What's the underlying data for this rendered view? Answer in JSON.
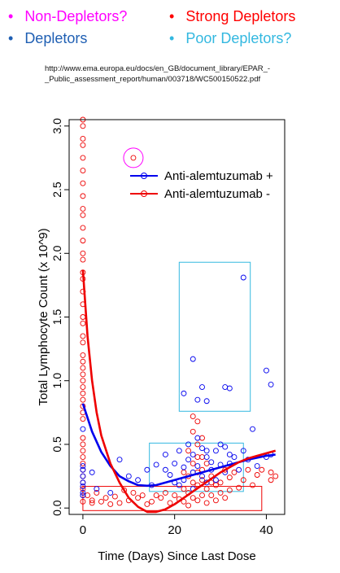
{
  "header": {
    "categories": [
      {
        "label": "Non-Depletors?",
        "color": "#ff00ff"
      },
      {
        "label": "Strong Depletors",
        "color": "#ff0000"
      },
      {
        "label": "Depletors",
        "color": "#1f5fb3"
      },
      {
        "label": "Poor Depletors?",
        "color": "#33b8e0"
      }
    ],
    "bullet": "•",
    "url_line1": "http://www.ema.europa.eu/docs/en_GB/document_library/EPAR_-",
    "url_line2": "_Public_assessment_report/human/003718/WC500150522.pdf"
  },
  "chart_data": {
    "type": "scatter",
    "xlabel": "Time (Days) Since Last Dose",
    "ylabel": "Total Lymphocyte Count (x 10^9)",
    "xlim": [
      -3,
      44
    ],
    "ylim": [
      -0.05,
      3.05
    ],
    "xticks": [
      0,
      20,
      40
    ],
    "yticks": [
      0.0,
      0.5,
      1.0,
      1.5,
      2.0,
      2.5,
      3.0
    ],
    "ytick_labels": [
      "0.0",
      "0.5",
      "1.0",
      "1.5",
      "2.0",
      "2.5",
      "3.0"
    ],
    "legend": {
      "placement": "top-right",
      "entries": [
        {
          "label": "Anti-alemtuzumab  +",
          "color": "#0000ee"
        },
        {
          "label": "Anti-alemtuzumab  -",
          "color": "#ee0000"
        }
      ]
    },
    "series": [
      {
        "name": "Anti-alemtuzumab  +",
        "color": "#0000ee",
        "points": [
          [
            0,
            0.62
          ],
          [
            0,
            0.33
          ],
          [
            0,
            0.3
          ],
          [
            0,
            0.25
          ],
          [
            0,
            0.2
          ],
          [
            0,
            0.17
          ],
          [
            0,
            0.12
          ],
          [
            0,
            0.1
          ],
          [
            2,
            0.28
          ],
          [
            3,
            0.15
          ],
          [
            6,
            0.12
          ],
          [
            8,
            0.38
          ],
          [
            10,
            0.25
          ],
          [
            12,
            0.22
          ],
          [
            14,
            0.3
          ],
          [
            15,
            0.18
          ],
          [
            16,
            0.34
          ],
          [
            18,
            0.42
          ],
          [
            19,
            0.26
          ],
          [
            20,
            0.35
          ],
          [
            21,
            0.45
          ],
          [
            21,
            0.18
          ],
          [
            22,
            0.32
          ],
          [
            22,
            0.22
          ],
          [
            23,
            0.5
          ],
          [
            23,
            0.38
          ],
          [
            24,
            0.28
          ],
          [
            24,
            0.42
          ],
          [
            25,
            0.55
          ],
          [
            25,
            0.33
          ],
          [
            26,
            0.47
          ],
          [
            26,
            0.25
          ],
          [
            27,
            0.4
          ],
          [
            27,
            0.2
          ],
          [
            28,
            0.36
          ],
          [
            28,
            0.3
          ],
          [
            29,
            0.45
          ],
          [
            29,
            0.22
          ],
          [
            30,
            0.5
          ],
          [
            30,
            0.34
          ],
          [
            31,
            0.28
          ],
          [
            32,
            0.42
          ],
          [
            32,
            0.35
          ],
          [
            33,
            0.4
          ],
          [
            34,
            0.3
          ],
          [
            35,
            0.45
          ],
          [
            36,
            0.38
          ],
          [
            37,
            0.62
          ],
          [
            38,
            0.33
          ],
          [
            40,
            0.4
          ],
          [
            41,
            0.42
          ],
          [
            18,
            0.3
          ],
          [
            20,
            0.2
          ],
          [
            24,
            0.15
          ],
          [
            27,
            0.45
          ],
          [
            31,
            0.48
          ],
          [
            22,
            0.9
          ],
          [
            24,
            1.17
          ],
          [
            25,
            0.85
          ],
          [
            26,
            0.95
          ],
          [
            27,
            0.84
          ],
          [
            31,
            0.95
          ],
          [
            32,
            0.94
          ],
          [
            35,
            1.81
          ],
          [
            40,
            1.08
          ],
          [
            41,
            0.97
          ]
        ]
      },
      {
        "name": "Anti-alemtuzumab  -",
        "color": "#ee0000",
        "points": [
          [
            11,
            2.75
          ],
          [
            1,
            0.1
          ],
          [
            2,
            0.06
          ],
          [
            2,
            0.04
          ],
          [
            3,
            0.12
          ],
          [
            4,
            0.05
          ],
          [
            5,
            0.08
          ],
          [
            6,
            0.03
          ],
          [
            7,
            0.09
          ],
          [
            8,
            0.04
          ],
          [
            9,
            0.14
          ],
          [
            10,
            0.06
          ],
          [
            11,
            0.12
          ],
          [
            12,
            0.08
          ],
          [
            13,
            0.1
          ],
          [
            14,
            0.03
          ],
          [
            15,
            0.05
          ],
          [
            16,
            0.1
          ],
          [
            17,
            0.08
          ],
          [
            18,
            0.12
          ],
          [
            19,
            0.04
          ],
          [
            20,
            0.1
          ],
          [
            21,
            0.07
          ],
          [
            22,
            0.15
          ],
          [
            22,
            0.05
          ],
          [
            23,
            0.12
          ],
          [
            23,
            0.02
          ],
          [
            24,
            0.2
          ],
          [
            24,
            0.08
          ],
          [
            25,
            0.18
          ],
          [
            25,
            0.06
          ],
          [
            26,
            0.22
          ],
          [
            26,
            0.1
          ],
          [
            27,
            0.15
          ],
          [
            27,
            0.04
          ],
          [
            28,
            0.25
          ],
          [
            28,
            0.1
          ],
          [
            29,
            0.18
          ],
          [
            29,
            0.06
          ],
          [
            30,
            0.2
          ],
          [
            30,
            0.12
          ],
          [
            31,
            0.3
          ],
          [
            31,
            0.08
          ],
          [
            32,
            0.24
          ],
          [
            32,
            0.14
          ],
          [
            33,
            0.28
          ],
          [
            34,
            0.16
          ],
          [
            35,
            0.22
          ],
          [
            36,
            0.3
          ],
          [
            37,
            0.18
          ],
          [
            38,
            0.26
          ],
          [
            39,
            0.3
          ],
          [
            41,
            0.22
          ],
          [
            41,
            0.28
          ],
          [
            42,
            0.25
          ],
          [
            24,
            0.72
          ],
          [
            25,
            0.68
          ],
          [
            26,
            0.55
          ],
          [
            24,
            0.6
          ],
          [
            23,
            0.45
          ],
          [
            25,
            0.4
          ],
          [
            27,
            0.35
          ],
          [
            26,
            0.3
          ],
          [
            24,
            0.35
          ],
          [
            25,
            0.28
          ],
          [
            23,
            0.25
          ],
          [
            28,
            0.2
          ],
          [
            22,
            0.28
          ],
          [
            26,
            0.4
          ],
          [
            25,
            0.5
          ]
        ],
        "column_at_zero": {
          "x": 0,
          "values": [
            3.05,
            3.0,
            2.9,
            2.85,
            2.75,
            2.65,
            2.55,
            2.45,
            2.35,
            2.3,
            2.2,
            2.1,
            2.0,
            1.95,
            1.85,
            1.8,
            1.7,
            1.6,
            1.5,
            1.45,
            1.35,
            1.3,
            1.2,
            1.15,
            1.1,
            1.05,
            1.0,
            0.95,
            0.9,
            0.85,
            0.8,
            0.75,
            0.7,
            0.55,
            0.5,
            0.45,
            0.4,
            0.35,
            0.3,
            0.25,
            0.2,
            0.15,
            0.1,
            0.05
          ]
        }
      }
    ],
    "fitted_curves": [
      {
        "name": "Anti-alemtuzumab  +",
        "color": "#0000ee",
        "x": [
          0,
          2,
          4,
          6,
          8,
          10,
          12,
          14,
          16,
          18,
          20,
          24,
          28,
          32,
          36,
          40,
          42
        ],
        "y": [
          0.82,
          0.6,
          0.44,
          0.33,
          0.25,
          0.21,
          0.18,
          0.175,
          0.18,
          0.2,
          0.22,
          0.26,
          0.3,
          0.34,
          0.38,
          0.41,
          0.42
        ]
      },
      {
        "name": "Anti-alemtuzumab  -",
        "color": "#ee0000",
        "x": [
          0,
          1,
          2,
          3,
          4,
          6,
          8,
          10,
          12,
          14,
          16,
          18,
          20,
          22,
          24,
          26,
          28,
          30,
          32,
          34,
          36,
          38,
          40,
          42
        ],
        "y": [
          1.87,
          1.35,
          1.0,
          0.75,
          0.57,
          0.35,
          0.2,
          0.08,
          0.01,
          -0.03,
          -0.03,
          -0.01,
          0.03,
          0.08,
          0.13,
          0.18,
          0.23,
          0.28,
          0.32,
          0.36,
          0.39,
          0.41,
          0.43,
          0.45
        ]
      }
    ],
    "annotations": [
      {
        "shape": "circle",
        "color": "#ff00ff",
        "center": [
          11,
          2.75
        ],
        "label": "Non-Depletors?"
      },
      {
        "shape": "rect",
        "color": "#33b8e0",
        "x": [
          21,
          36.5
        ],
        "y": [
          0.76,
          1.93
        ],
        "label": "Poor Depletors?"
      },
      {
        "shape": "rect",
        "color": "#33b8e0",
        "x": [
          14.5,
          35
        ],
        "y": [
          0.13,
          0.51
        ],
        "label": "Depletors"
      },
      {
        "shape": "rect",
        "color": "#ee0000",
        "x": [
          0,
          39
        ],
        "y": [
          -0.02,
          0.17
        ],
        "label": "Strong Depletors"
      }
    ]
  }
}
